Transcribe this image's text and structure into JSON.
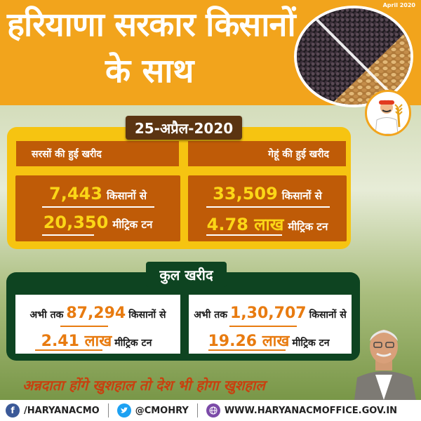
{
  "header": {
    "date_small": "April 2020",
    "title_line1": "हरियाणा सरकार किसानों",
    "title_line2": "के साथ"
  },
  "date_tag": "25-अप्रैल-2020",
  "mustard": {
    "label": "सरसों की हुई खरीद",
    "farmers_value": "7,443",
    "farmers_text": "किसानों से",
    "quantity_value": "20,350",
    "quantity_text": "मीट्रिक टन"
  },
  "wheat": {
    "label": "गेहूं की हुई खरीद",
    "farmers_value": "33,509",
    "farmers_text": "किसानों से",
    "quantity_value": "4.78 लाख",
    "quantity_text": "मीट्रिक टन"
  },
  "total_tag": "कुल खरीद",
  "total_mustard": {
    "prefix": "अभी तक",
    "farmers_value": "87,294",
    "farmers_text": "किसानों से",
    "quantity_value": "2.41 लाख",
    "quantity_text": "मीट्रिक टन"
  },
  "total_wheat": {
    "prefix": "अभी तक",
    "farmers_value": "1,30,707",
    "farmers_text": "किसानों से",
    "quantity_value": "19.26 लाख",
    "quantity_text": "मीट्रिक टन"
  },
  "tagline": "अन्नदाता होंगे खुशहाल तो देश भी होगा खुशहाल",
  "footer": {
    "facebook": "/HARYANACMO",
    "twitter": "@CMOHRY",
    "website": "WWW.HARYANACMOFFICE.GOV.IN"
  },
  "colors": {
    "header_orange": "#f2a41c",
    "panel_yellow": "#f6c411",
    "box_orange": "#bf5b07",
    "panel_green": "#0e4421",
    "accent_orange": "#e87b10",
    "tagline_red": "#c8400f"
  }
}
